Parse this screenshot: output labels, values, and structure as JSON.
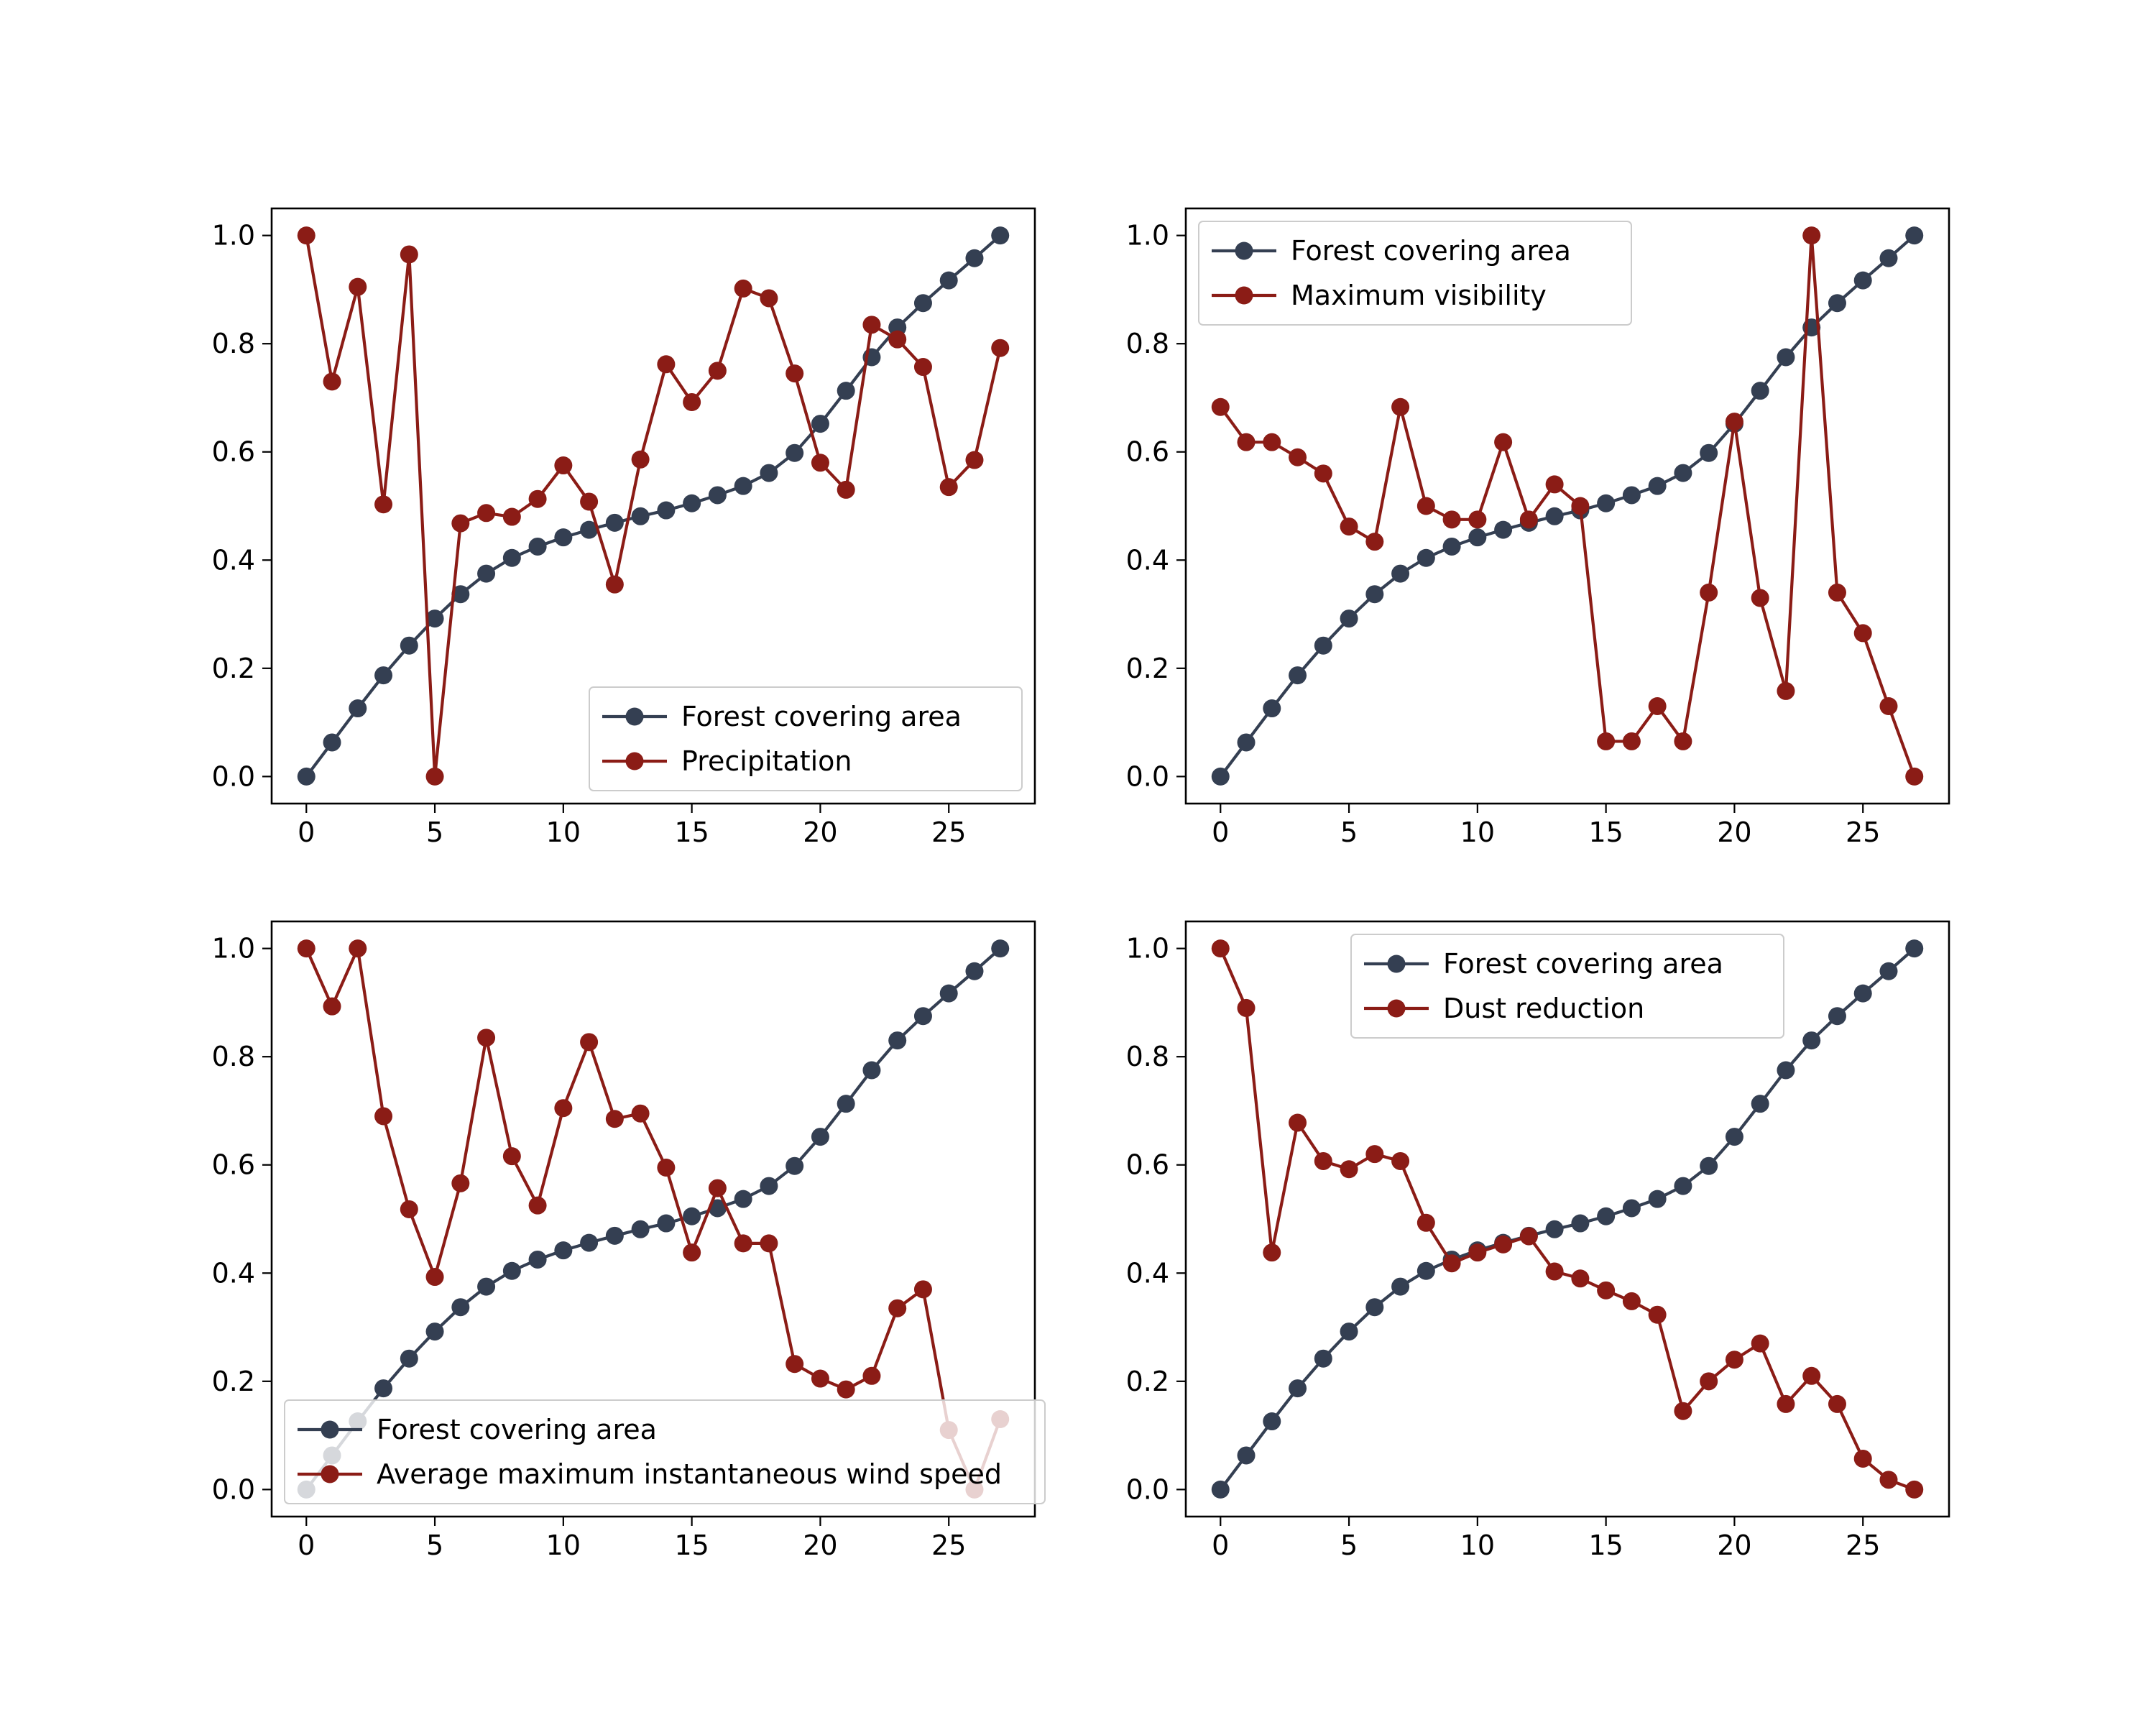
{
  "colors": {
    "forest": "#343f52",
    "factor": "#8b1c16",
    "axes": "#000000",
    "background": "#ffffff",
    "legend_border": "#cccccc"
  },
  "chart_data": [
    {
      "type": "line",
      "title": "",
      "xlabel": "",
      "ylabel": "",
      "x": [
        0,
        1,
        2,
        3,
        4,
        5,
        6,
        7,
        8,
        9,
        10,
        11,
        12,
        13,
        14,
        15,
        16,
        17,
        18,
        19,
        20,
        21,
        22,
        23,
        24,
        25,
        26,
        27
      ],
      "xlim": [
        -1.35,
        28.35
      ],
      "ylim": [
        -0.05,
        1.05
      ],
      "xticks": [
        0,
        5,
        10,
        15,
        20,
        25
      ],
      "yticks": [
        0.0,
        0.2,
        0.4,
        0.6,
        0.8,
        1.0
      ],
      "ytick_labels": [
        "0.0",
        "0.2",
        "0.4",
        "0.6",
        "0.8",
        "1.0"
      ],
      "grid": false,
      "legend_position": "lower right",
      "series": [
        {
          "name": "Forest covering area",
          "color": "#343f52",
          "values": [
            0.0,
            0.063,
            0.126,
            0.187,
            0.242,
            0.292,
            0.337,
            0.375,
            0.404,
            0.425,
            0.442,
            0.456,
            0.469,
            0.481,
            0.492,
            0.505,
            0.52,
            0.537,
            0.561,
            0.598,
            0.652,
            0.713,
            0.775,
            0.83,
            0.875,
            0.917,
            0.958,
            1.0
          ]
        },
        {
          "name": "Precipitation",
          "color": "#8b1c16",
          "values": [
            1.0,
            0.73,
            0.905,
            0.503,
            0.965,
            0.0,
            0.468,
            0.487,
            0.48,
            0.513,
            0.575,
            0.508,
            0.355,
            0.586,
            0.762,
            0.692,
            0.75,
            0.902,
            0.884,
            0.745,
            0.58,
            0.53,
            0.835,
            0.808,
            0.757,
            0.535,
            0.585,
            0.792
          ]
        }
      ]
    },
    {
      "type": "line",
      "title": "",
      "xlabel": "",
      "ylabel": "",
      "x": [
        0,
        1,
        2,
        3,
        4,
        5,
        6,
        7,
        8,
        9,
        10,
        11,
        12,
        13,
        14,
        15,
        16,
        17,
        18,
        19,
        20,
        21,
        22,
        23,
        24,
        25,
        26,
        27
      ],
      "xlim": [
        -1.35,
        28.35
      ],
      "ylim": [
        -0.05,
        1.05
      ],
      "xticks": [
        0,
        5,
        10,
        15,
        20,
        25
      ],
      "yticks": [
        0.0,
        0.2,
        0.4,
        0.6,
        0.8,
        1.0
      ],
      "ytick_labels": [
        "0.0",
        "0.2",
        "0.4",
        "0.6",
        "0.8",
        "1.0"
      ],
      "grid": false,
      "legend_position": "upper left",
      "series": [
        {
          "name": "Forest covering area",
          "color": "#343f52",
          "values": [
            0.0,
            0.063,
            0.126,
            0.187,
            0.242,
            0.292,
            0.337,
            0.375,
            0.404,
            0.425,
            0.442,
            0.456,
            0.469,
            0.481,
            0.492,
            0.505,
            0.52,
            0.537,
            0.561,
            0.598,
            0.652,
            0.713,
            0.775,
            0.83,
            0.875,
            0.917,
            0.958,
            1.0
          ]
        },
        {
          "name": "Maximum visibility",
          "color": "#8b1c16",
          "values": [
            0.683,
            0.618,
            0.618,
            0.59,
            0.56,
            0.462,
            0.434,
            0.683,
            0.5,
            0.475,
            0.475,
            0.618,
            0.475,
            0.54,
            0.5,
            0.065,
            0.065,
            0.13,
            0.065,
            0.34,
            0.656,
            0.33,
            0.158,
            1.0,
            0.34,
            0.265,
            0.13,
            0.0
          ]
        }
      ]
    },
    {
      "type": "line",
      "title": "",
      "xlabel": "",
      "ylabel": "",
      "x": [
        0,
        1,
        2,
        3,
        4,
        5,
        6,
        7,
        8,
        9,
        10,
        11,
        12,
        13,
        14,
        15,
        16,
        17,
        18,
        19,
        20,
        21,
        22,
        23,
        24,
        25,
        26,
        27
      ],
      "xlim": [
        -1.35,
        28.35
      ],
      "ylim": [
        -0.05,
        1.05
      ],
      "xticks": [
        0,
        5,
        10,
        15,
        20,
        25
      ],
      "yticks": [
        0.0,
        0.2,
        0.4,
        0.6,
        0.8,
        1.0
      ],
      "ytick_labels": [
        "0.0",
        "0.2",
        "0.4",
        "0.6",
        "0.8",
        "1.0"
      ],
      "grid": false,
      "legend_position": "lower left",
      "series": [
        {
          "name": "Forest covering area",
          "color": "#343f52",
          "values": [
            0.0,
            0.063,
            0.126,
            0.187,
            0.242,
            0.292,
            0.337,
            0.375,
            0.404,
            0.425,
            0.442,
            0.456,
            0.469,
            0.481,
            0.492,
            0.505,
            0.52,
            0.537,
            0.561,
            0.598,
            0.652,
            0.713,
            0.775,
            0.83,
            0.875,
            0.917,
            0.958,
            1.0
          ]
        },
        {
          "name": "Average maximum instantaneous wind speed",
          "color": "#8b1c16",
          "values": [
            1.0,
            0.893,
            1.0,
            0.69,
            0.518,
            0.393,
            0.566,
            0.835,
            0.616,
            0.525,
            0.705,
            0.827,
            0.685,
            0.695,
            0.595,
            0.438,
            0.557,
            0.455,
            0.455,
            0.232,
            0.205,
            0.185,
            0.21,
            0.335,
            0.37,
            0.11,
            0.0,
            0.13
          ]
        }
      ]
    },
    {
      "type": "line",
      "title": "",
      "xlabel": "",
      "ylabel": "",
      "x": [
        0,
        1,
        2,
        3,
        4,
        5,
        6,
        7,
        8,
        9,
        10,
        11,
        12,
        13,
        14,
        15,
        16,
        17,
        18,
        19,
        20,
        21,
        22,
        23,
        24,
        25,
        26,
        27
      ],
      "xlim": [
        -1.35,
        28.35
      ],
      "ylim": [
        -0.05,
        1.05
      ],
      "xticks": [
        0,
        5,
        10,
        15,
        20,
        25
      ],
      "yticks": [
        0.0,
        0.2,
        0.4,
        0.6,
        0.8,
        1.0
      ],
      "ytick_labels": [
        "0.0",
        "0.2",
        "0.4",
        "0.6",
        "0.8",
        "1.0"
      ],
      "grid": false,
      "legend_position": "upper center",
      "series": [
        {
          "name": "Forest covering area",
          "color": "#343f52",
          "values": [
            0.0,
            0.063,
            0.126,
            0.187,
            0.242,
            0.292,
            0.337,
            0.375,
            0.404,
            0.425,
            0.442,
            0.456,
            0.469,
            0.481,
            0.492,
            0.505,
            0.52,
            0.537,
            0.561,
            0.598,
            0.652,
            0.713,
            0.775,
            0.83,
            0.875,
            0.917,
            0.958,
            1.0
          ]
        },
        {
          "name": "Dust reduction",
          "color": "#8b1c16",
          "values": [
            1.0,
            0.89,
            0.438,
            0.678,
            0.607,
            0.592,
            0.62,
            0.607,
            0.493,
            0.418,
            0.438,
            0.453,
            0.468,
            0.403,
            0.39,
            0.368,
            0.348,
            0.323,
            0.145,
            0.2,
            0.24,
            0.27,
            0.158,
            0.21,
            0.158,
            0.057,
            0.018,
            0.0
          ]
        }
      ]
    }
  ]
}
